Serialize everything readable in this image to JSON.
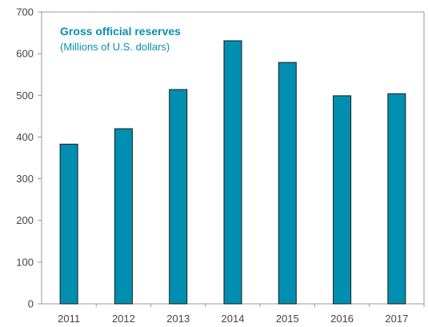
{
  "chart_data": {
    "type": "bar",
    "title": "Gross official reserves",
    "subtitle": "(Millions of U.S. dollars)",
    "xlabel": "",
    "ylabel": "",
    "categories": [
      "2011",
      "2012",
      "2013",
      "2014",
      "2015",
      "2016",
      "2017"
    ],
    "values": [
      383,
      420,
      514,
      631,
      579,
      499,
      504
    ],
    "ylim": [
      0,
      700
    ],
    "yticks": [
      0,
      100,
      200,
      300,
      400,
      500,
      600,
      700
    ],
    "grid": false,
    "legend": "none",
    "colors": {
      "bar": "#008fb0",
      "bar_outline": "#1a1a1a",
      "title": "#0b8fb0",
      "axis": "#9a9a9a"
    }
  }
}
